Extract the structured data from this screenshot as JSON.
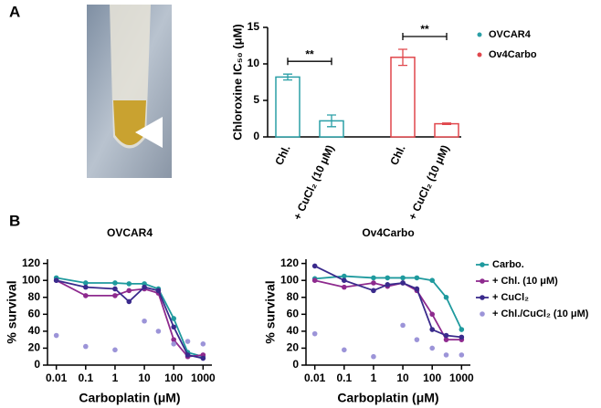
{
  "panel_labels": [
    "A",
    "B"
  ],
  "chart_data": [
    {
      "type": "bar",
      "ylabel": "Chloroxine IC₅₀ (μM)",
      "categories": [
        "Chl.",
        "+ CuCl₂ (10 μM)",
        "Chl.",
        "+ CuCl₂ (10 μM)"
      ],
      "series": [
        {
          "name": "OVCAR4",
          "color": "#2a9fa6",
          "values": [
            8.2,
            2.2,
            null,
            null
          ],
          "errors": [
            0.4,
            0.8,
            null,
            null
          ]
        },
        {
          "name": "Ov4Carbo",
          "color": "#e0474c",
          "values": [
            null,
            null,
            10.9,
            1.8
          ],
          "errors": [
            null,
            null,
            1.1,
            0.1
          ]
        }
      ],
      "annotations": [
        "**",
        "**"
      ],
      "ylim": [
        0,
        15
      ],
      "yticks": [
        0,
        5,
        10,
        15
      ],
      "legend": "right"
    },
    {
      "type": "line",
      "title": "OVCAR4",
      "xlabel": "Carboplatin (μM)",
      "ylabel": "% survival",
      "xscale": "log",
      "xlim": [
        0.005,
        2000
      ],
      "xticks": [
        0.01,
        0.1,
        1,
        10,
        100,
        1000
      ],
      "ylim": [
        0,
        125
      ],
      "yticks": [
        0,
        20,
        40,
        60,
        80,
        100,
        120
      ],
      "x": [
        0.01,
        0.1,
        1,
        3,
        10,
        30,
        100,
        300,
        1000
      ],
      "series": [
        {
          "color": "#1f9a9e",
          "line": true,
          "values": [
            103,
            97,
            97,
            96,
            96,
            90,
            55,
            15,
            10
          ]
        },
        {
          "color": "#8e2a8e",
          "line": true,
          "values": [
            100,
            82,
            82,
            88,
            90,
            85,
            30,
            10,
            12
          ]
        },
        {
          "color": "#3a2a8c",
          "line": true,
          "values": [
            100,
            92,
            90,
            75,
            92,
            88,
            45,
            12,
            8
          ]
        },
        {
          "color": "#9c94d8",
          "line": false,
          "values": [
            35,
            22,
            18,
            null,
            52,
            40,
            25,
            28,
            25
          ]
        }
      ]
    },
    {
      "type": "line",
      "title": "Ov4Carbo",
      "xlabel": "Carboplatin (μM)",
      "ylabel": "% survival",
      "xscale": "log",
      "xlim": [
        0.005,
        2000
      ],
      "xticks": [
        0.01,
        0.1,
        1,
        10,
        100,
        1000
      ],
      "ylim": [
        0,
        125
      ],
      "yticks": [
        0,
        20,
        40,
        60,
        80,
        100,
        120
      ],
      "x": [
        0.01,
        0.1,
        1,
        3,
        10,
        30,
        100,
        300,
        1000
      ],
      "legend": "right",
      "series": [
        {
          "name": "Carbo.",
          "color": "#1f9a9e",
          "line": true,
          "values": [
            102,
            105,
            103,
            103,
            103,
            103,
            100,
            80,
            42
          ]
        },
        {
          "name": "+ Chl. (10 μM)",
          "color": "#8e2a8e",
          "line": true,
          "values": [
            100,
            92,
            97,
            93,
            97,
            88,
            60,
            30,
            30
          ]
        },
        {
          "name": "+ CuCl₂",
          "color": "#3a2a8c",
          "line": true,
          "values": [
            117,
            100,
            88,
            95,
            97,
            90,
            42,
            35,
            33
          ]
        },
        {
          "name": "+ Chl./CuCl₂ (10 μM)",
          "color": "#9c94d8",
          "line": false,
          "values": [
            37,
            18,
            10,
            null,
            47,
            30,
            20,
            12,
            12
          ]
        }
      ]
    }
  ]
}
